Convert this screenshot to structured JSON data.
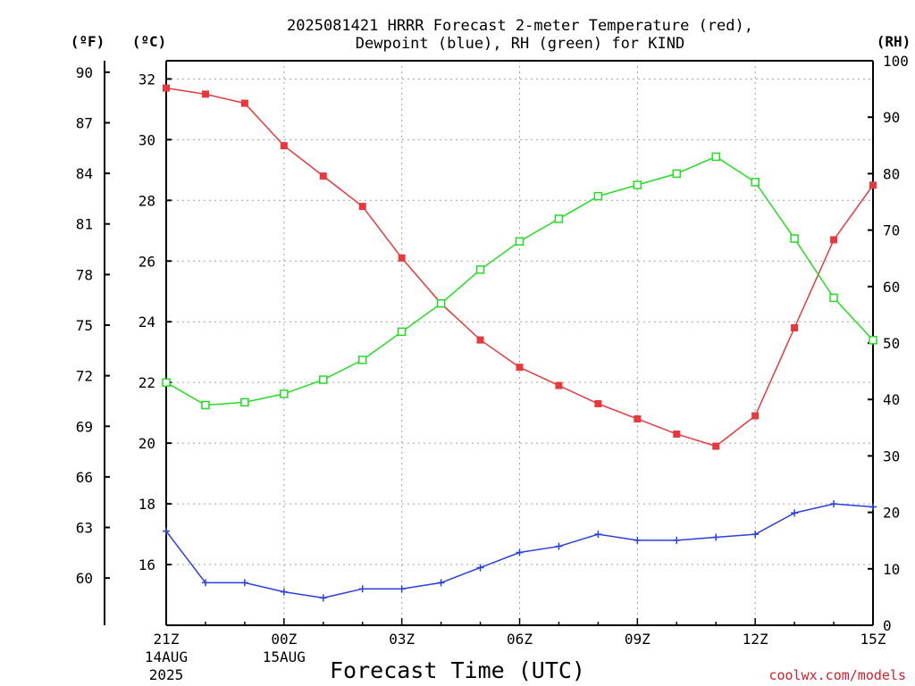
{
  "chart_data": {
    "type": "line",
    "title_line1": "2025081421 HRRR Forecast 2-meter Temperature (red),",
    "title_line2": "Dewpoint (blue), RH (green) for KIND",
    "xlabel": "Forecast Time (UTC)",
    "credit": "coolwx.com/models",
    "units": {
      "fahrenheit": "(ºF)",
      "celsius": "(ºC)",
      "rh": "(RH)"
    },
    "x_ticks": [
      {
        "hour": 0,
        "label": "21Z",
        "sub1": "14AUG",
        "sub2": "2025"
      },
      {
        "hour": 3,
        "label": "00Z",
        "sub1": "15AUG",
        "sub2": ""
      },
      {
        "hour": 6,
        "label": "03Z",
        "sub1": "",
        "sub2": ""
      },
      {
        "hour": 9,
        "label": "06Z",
        "sub1": "",
        "sub2": ""
      },
      {
        "hour": 12,
        "label": "09Z",
        "sub1": "",
        "sub2": ""
      },
      {
        "hour": 15,
        "label": "12Z",
        "sub1": "",
        "sub2": ""
      },
      {
        "hour": 18,
        "label": "15Z",
        "sub1": "",
        "sub2": ""
      }
    ],
    "xlim": [
      0,
      18
    ],
    "celsius_ylim": [
      14,
      32.6
    ],
    "celsius_ticks": [
      16,
      18,
      20,
      22,
      24,
      26,
      28,
      30,
      32
    ],
    "fahrenheit_ticks": [
      60,
      63,
      66,
      69,
      72,
      75,
      78,
      81,
      84,
      87,
      90
    ],
    "rh_ylim": [
      0,
      100
    ],
    "rh_ticks": [
      0,
      10,
      20,
      30,
      40,
      50,
      60,
      70,
      80,
      90,
      100
    ],
    "grid": true,
    "series": [
      {
        "name": "2-meter Temperature",
        "color": "#e8383d",
        "marker": "filled-square",
        "axis": "celsius",
        "values": [
          31.7,
          31.5,
          31.2,
          29.8,
          28.8,
          27.8,
          26.1,
          24.6,
          23.4,
          22.5,
          21.9,
          21.3,
          20.8,
          20.3,
          19.9,
          20.9,
          23.8,
          26.7,
          28.5
        ]
      },
      {
        "name": "Dewpoint",
        "color": "#2a3fe0",
        "marker": "plus",
        "axis": "celsius",
        "values": [
          17.1,
          15.4,
          15.4,
          15.1,
          14.9,
          15.2,
          15.2,
          15.4,
          15.9,
          16.4,
          16.6,
          17.0,
          16.8,
          16.8,
          16.9,
          17.0,
          17.7,
          18.0,
          17.9
        ]
      },
      {
        "name": "RH",
        "color": "#22dd22",
        "marker": "open-square",
        "axis": "rh",
        "values": [
          43,
          39,
          39.5,
          41,
          43.5,
          47,
          52,
          57,
          63,
          68,
          72,
          76,
          78,
          80,
          83,
          78.5,
          68.5,
          58,
          50.5
        ]
      }
    ]
  }
}
